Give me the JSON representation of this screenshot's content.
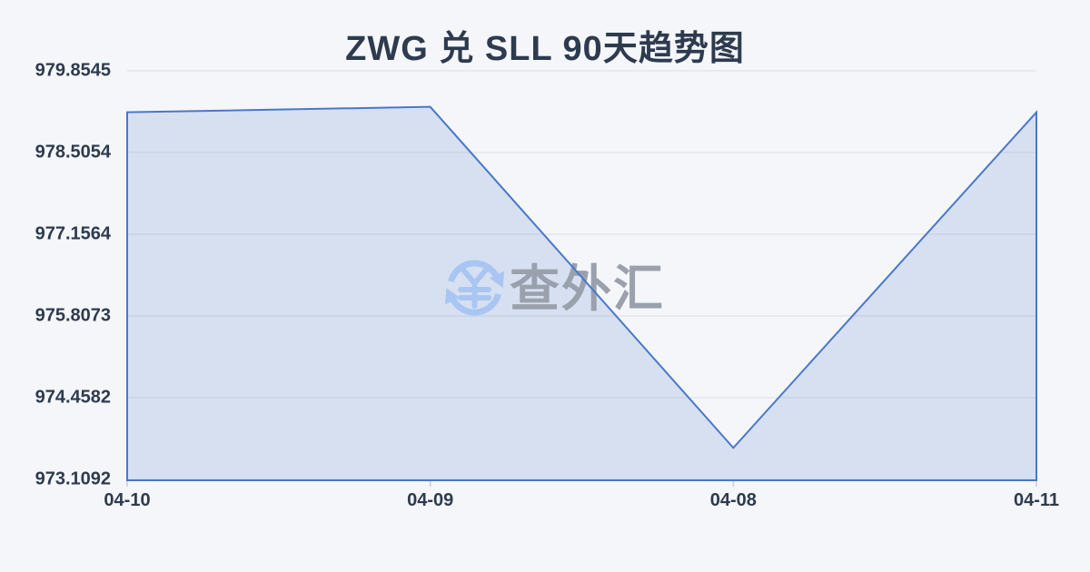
{
  "page": {
    "background": "#f4f6f9"
  },
  "chart_data": {
    "type": "area",
    "title": "ZWG 兑 SLL 90天趋势图",
    "x": [
      "04-10",
      "04-09",
      "04-08",
      "04-11"
    ],
    "values": [
      979.17,
      979.26,
      973.63,
      979.17
    ],
    "series_name": "ZWG/SLL",
    "y_ticks": [
      979.8545,
      978.5054,
      977.1564,
      975.8073,
      974.4582,
      973.1092
    ],
    "y_tick_labels": [
      "979.8545",
      "978.5054",
      "977.1564",
      "975.8073",
      "974.4582",
      "973.1092"
    ],
    "ylim": [
      973.1092,
      979.8545
    ],
    "xlabel": "",
    "ylabel": "",
    "grid": "horizontal",
    "legend": "none",
    "colors": {
      "line": "#4a78c8",
      "fill": "rgba(74,120,200,0.17)",
      "grid": "#e3e5e9",
      "tick": "#c9cdd4",
      "text": "#2e3b4e",
      "background": "#f4f6f9"
    }
  },
  "watermark": {
    "text": "查外汇",
    "icon": "currency-exchange-icon",
    "icon_color": "#a9c6f3",
    "text_color": "#9aa1ad"
  }
}
